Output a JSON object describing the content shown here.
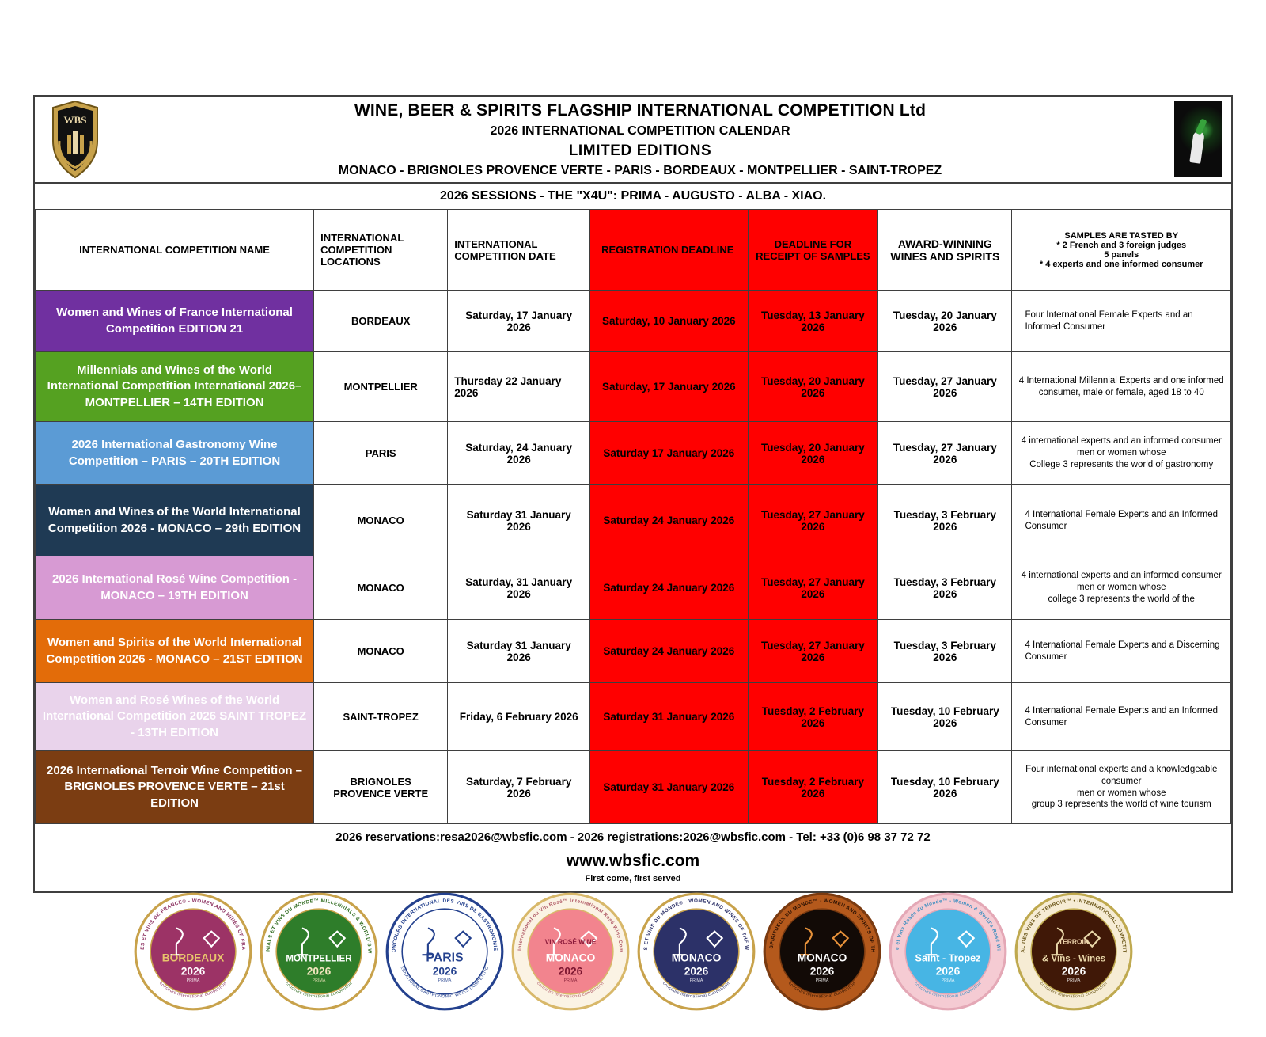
{
  "header": {
    "logo_text": "WBS",
    "title": "WINE, BEER & SPIRITS FLAGSHIP INTERNATIONAL COMPETITION Ltd",
    "subtitle": "2026 INTERNATIONAL COMPETITION CALENDAR",
    "edition_line": "LIMITED EDITIONS",
    "cities_line": "MONACO - BRIGNOLES PROVENCE VERTE - PARIS - BORDEAUX - MONTPELLIER - SAINT-TROPEZ",
    "sessions_line": "2026 SESSIONS - THE \"X4U\": PRIMA - AUGUSTO - ALBA - XIAO."
  },
  "table": {
    "red": "#ff0000",
    "columns": [
      {
        "key": "name",
        "label": "INTERNATIONAL COMPETITION NAME",
        "red": false
      },
      {
        "key": "locations",
        "label": "INTERNATIONAL COMPETITION LOCATIONS",
        "red": false
      },
      {
        "key": "date",
        "label": "INTERNATIONAL COMPETITION DATE",
        "red": false
      },
      {
        "key": "registration",
        "label": "REGISTRATION DEADLINE",
        "red": true
      },
      {
        "key": "samples",
        "label": "DEADLINE FOR RECEIPT OF SAMPLES",
        "red": true
      },
      {
        "key": "award",
        "label": "AWARD-WINNING WINES AND SPIRITS",
        "red": false
      },
      {
        "key": "tasted",
        "label": "SAMPLES ARE TASTED BY\n* 2 French and 3 foreign judges\n5 panels\n* 4 experts and one informed consumer",
        "red": false
      }
    ],
    "rows": [
      {
        "name": "Women and Wines of France International Competition EDITION 21",
        "name_bg": "#7030a0",
        "name_color": "#ffffff",
        "location": "BORDEAUX",
        "date": "Saturday, 17 January 2026",
        "registration": "Saturday, 10 January 2026",
        "receipt": "Tuesday, 13 January 2026",
        "award": "Tuesday, 20 January 2026",
        "tasted": "Four International Female Experts and an Informed Consumer"
      },
      {
        "name": "Millennials and Wines of the World International Competition International 2026– MONTPELLIER – 14TH EDITION",
        "name_bg": "#55a121",
        "name_color": "#ffffff",
        "location": "MONTPELLIER",
        "date": "Thursday 22 January 2026",
        "registration": "Saturday, 17 January 2026",
        "receipt": "Tuesday, 20 January 2026",
        "award": "Tuesday, 27 January 2026",
        "tasted": "4 International Millennial Experts and one informed consumer, male or female, aged 18 to 40"
      },
      {
        "name": "2026 International Gastronomy Wine Competition – PARIS – 20TH EDITION",
        "name_bg": "#5b9bd5",
        "name_color": "#ffffff",
        "location": "PARIS",
        "date": "Saturday, 24 January 2026",
        "registration": "Saturday 17 January 2026",
        "receipt": "Tuesday, 20 January 2026",
        "award": "Tuesday, 27 January 2026",
        "tasted": "4 international experts and an informed consumer\nmen or women whose\nCollege 3 represents the world of gastronomy"
      },
      {
        "name": "Women and Wines of the World International Competition 2026 - MONACO – 29th EDITION",
        "name_bg": "#1f3a54",
        "name_color": "#ffffff",
        "location": "MONACO",
        "date": "Saturday 31 January 2026",
        "registration": "Saturday 24 January 2026",
        "receipt": "Tuesday, 27 January 2026",
        "award": "Tuesday, 3 February 2026",
        "tasted": "4 International Female Experts and an Informed Consumer"
      },
      {
        "name": "2026 International Rosé Wine Competition - MONACO – 19TH EDITION",
        "name_bg": "#d79ad3",
        "name_color": "#ffffff",
        "location": "MONACO",
        "date": "Saturday, 31 January 2026",
        "registration": "Saturday 24 January 2026",
        "receipt": "Tuesday, 27 January 2026",
        "award": "Tuesday, 3 February 2026",
        "tasted": "4 international experts and an informed consumer\nmen or women whose\ncollege 3 represents the world of the"
      },
      {
        "name": "Women and Spirits of the World International Competition 2026 - MONACO – 21ST EDITION",
        "name_bg": "#e36c09",
        "name_color": "#ffffff",
        "location": "MONACO",
        "date": "Saturday 31 January 2026",
        "registration": "Saturday 24 January 2026",
        "receipt": "Tuesday, 27 January 2026",
        "award": "Tuesday, 3 February 2026",
        "tasted": "4 International Female Experts and a Discerning Consumer"
      },
      {
        "name": "Women and Rosé Wines of the World International Competition 2026 SAINT TROPEZ - 13TH EDITION",
        "name_bg": "#e9d3eb",
        "name_color": "#ffffff",
        "location": "SAINT-TROPEZ",
        "date": "Friday, 6 February 2026",
        "registration": "Saturday 31 January 2026",
        "receipt": "Tuesday, 2 February 2026",
        "award": "Tuesday, 10 February 2026",
        "tasted": "4 International Female Experts and an Informed Consumer"
      },
      {
        "name": "2026 International Terroir Wine Competition – BRIGNOLES PROVENCE VERTE – 21st EDITION",
        "name_bg": "#7b3d12",
        "name_color": "#ffffff",
        "location": "BRIGNOLES PROVENCE VERTE",
        "date": "Saturday, 7 February 2026",
        "registration": "Saturday 31 January 2026",
        "receipt": "Tuesday, 2 February 2026",
        "award": "Tuesday, 10 February 2026",
        "tasted": "Four international experts and a knowledgeable consumer\nmen or women whose\ngroup 3 represents the world of wine tourism"
      }
    ]
  },
  "footer": {
    "contact_line": "2026 reservations:resa2026@wbsfic.com - 2026 registrations:2026@wbsfic.com - Tel: +33 (0)6 98 37 72 72",
    "website": "www.wbsfic.com",
    "note": "First come, first served"
  },
  "medals": [
    {
      "key": "bordeaux",
      "ring_text": "FEMMES ET VINS DE FRANCE® - WOMEN AND WINES OF FRANCE®",
      "bottom_text": "concours international competition",
      "band": "#ffffff",
      "edge": "#c8a24b",
      "text_color": "#8b2f5f",
      "center": "#9c3366",
      "label": "BORDEAUX",
      "label_color": "#e8c56c",
      "label_size": 13,
      "year": "2026",
      "year_color": "#ffffff",
      "sub": "PRIMA",
      "orn": "#ffffff"
    },
    {
      "key": "montpellier",
      "ring_text": "MILLENNIALS ET VINS DU MONDE™ MILLENNIALS & WORLD'S WINES™",
      "bottom_text": "concours international competition",
      "band": "#ffffff",
      "edge": "#c8a24b",
      "text_color": "#2f6b1f",
      "center": "#2e7d2a",
      "label": "MONTPELLIER",
      "label_color": "#ffffff",
      "label_size": 11,
      "year": "2026",
      "year_color": "#f3e5be",
      "sub": "PRIMA",
      "orn": "#ffffff"
    },
    {
      "key": "paris",
      "ring_text": "CONCOURS INTERNATIONAL DES VINS DE GASTRONOMIE™",
      "bottom_text": "INTERNATIONAL GASTRONOMIC WINES COMPETITION™",
      "band": "#ffffff",
      "edge": "#24418e",
      "text_color": "#24418e",
      "center": "#ffffff",
      "label": "PARIS",
      "label_color": "#24418e",
      "label_size": 15,
      "year": "2026",
      "year_color": "#24418e",
      "sub": "PRIMA",
      "orn": "#24418e"
    },
    {
      "key": "monaco-rose",
      "ring_text": "Concours International du Vin Rosé™ International Rosé Wine Competition™",
      "bottom_text": "concours international competition",
      "band": "#fbf3e4",
      "edge": "#d8b86a",
      "text_color": "#b05a66",
      "center": "#f2848e",
      "extra": "VIN ROSÉ WINE",
      "extra_color": "#8b1a3a",
      "label": "MONACO",
      "label_color": "#ffffff",
      "label_size": 13,
      "year": "2026",
      "year_color": "#7c1630",
      "sub": "PRIMA",
      "orn": "#ffffff"
    },
    {
      "key": "monaco-women-wines",
      "ring_text": "FEMMES ET VINS DU MONDE® - WOMEN AND WINES OF THE WORLD®",
      "bottom_text": "concours international competition",
      "band": "#ffffff",
      "edge": "#c8a24b",
      "text_color": "#2c3168",
      "center": "#2c3168",
      "label": "MONACO",
      "label_color": "#ffffff",
      "label_size": 13,
      "year": "2026",
      "year_color": "#ffffff",
      "sub": "PRIMA",
      "orn": "#ffffff"
    },
    {
      "key": "monaco-women-spirits",
      "ring_text": "FEMMES ET SPIRITUEUX DU MONDE™ - WOMEN AND SPIRITS OF THE WORLD®",
      "bottom_text": "concours international competition",
      "band": "#b4591c",
      "edge": "#7a3a10",
      "text_color": "#2c1204",
      "center": "#120a06",
      "label": "MONACO",
      "label_color": "#ffffff",
      "label_size": 13,
      "year": "2026",
      "year_color": "#ffffff",
      "sub": "PRIMA",
      "orn": "#e8923a"
    },
    {
      "key": "saint-tropez",
      "ring_text": "Femme et Vins Rosés du Monde™ - Women & World's Rosé Wines™",
      "bottom_text": "concours international competition",
      "band": "#f5cbd3",
      "edge": "#e4a8b6",
      "text_color": "#3e8fc0",
      "center": "#47b5e4",
      "label": "Saint - Tropez",
      "label_color": "#ffffff",
      "label_size": 12,
      "year": "2026",
      "year_color": "#ffffff",
      "sub": "PRIMA",
      "orn": "#ffffff"
    },
    {
      "key": "brignoles-terroir",
      "ring_text": "CONCOURS INTERNATIONAL DES VINS DE TERROIR™ • INTERNATIONAL COMPETITION OF TERROIR WINES™",
      "bottom_text": "concours international competition",
      "band": "#f6ecd4",
      "edge": "#bfa94f",
      "text_color": "#6b5618",
      "center": "#401807",
      "extra": "TERROIR",
      "extra_color": "#f3d9b0",
      "label": "& Vins - Wines",
      "label_color": "#e8d6a8",
      "label_size": 11,
      "year": "2026",
      "year_color": "#ffffff",
      "sub": "PRIMA",
      "orn": "#e8d6a8"
    }
  ]
}
